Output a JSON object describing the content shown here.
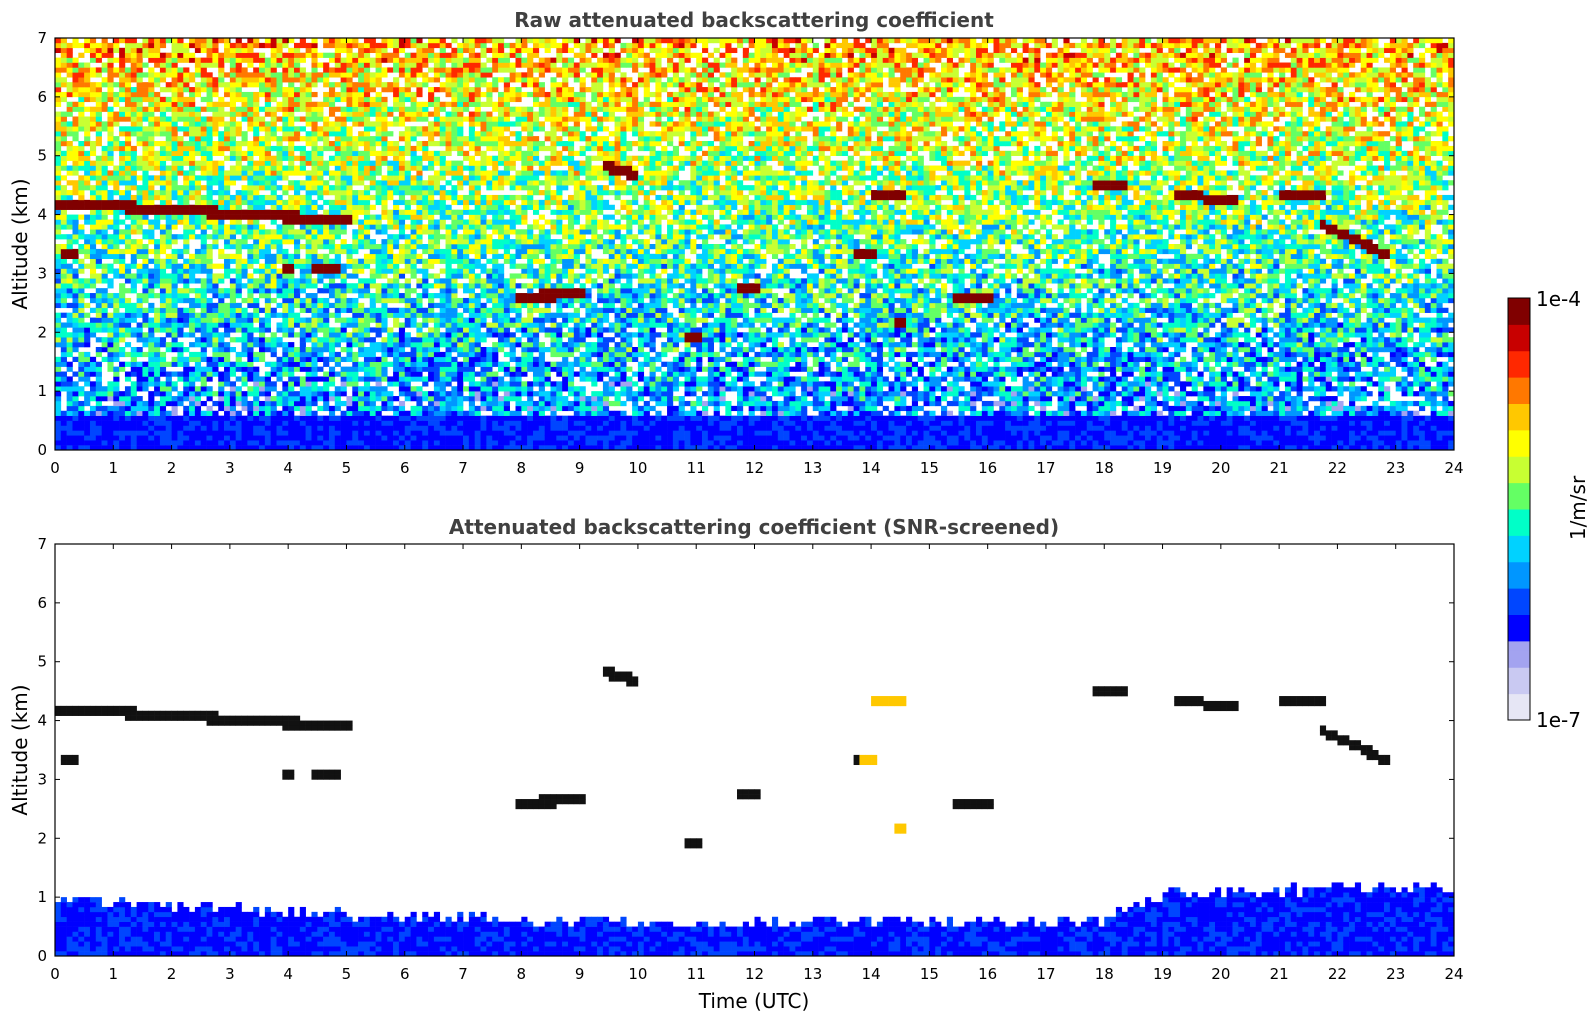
{
  "chart_data": [
    {
      "type": "heatmap",
      "title": "Raw attenuated backscattering coefficient",
      "xlabel": "",
      "ylabel": "Altitude (km)",
      "xlim": [
        0,
        24
      ],
      "ylim": [
        0,
        7
      ],
      "xticks": [
        "0",
        "1",
        "2",
        "3",
        "4",
        "5",
        "6",
        "7",
        "8",
        "9",
        "10",
        "11",
        "12",
        "13",
        "14",
        "15",
        "16",
        "17",
        "18",
        "19",
        "20",
        "21",
        "22",
        "23",
        "24"
      ],
      "yticks": [
        "0",
        "1",
        "2",
        "3",
        "4",
        "5",
        "6",
        "7"
      ],
      "features": {
        "boundary_layer_top_km": 0.6,
        "cloud_layers": [
          {
            "t_start": 0.1,
            "t_end": 5.0,
            "alt_start": 4.2,
            "alt_end": 3.9
          },
          {
            "t_start": 0.2,
            "t_end": 0.3,
            "alt_start": 3.35,
            "alt_end": 3.35
          },
          {
            "t_start": 4.0,
            "t_end": 4.1,
            "alt_start": 3.1,
            "alt_end": 3.1
          },
          {
            "t_start": 4.5,
            "t_end": 4.8,
            "alt_start": 3.1,
            "alt_end": 3.1
          },
          {
            "t_start": 7.9,
            "t_end": 9.0,
            "alt_start": 2.6,
            "alt_end": 2.65
          },
          {
            "t_start": 9.5,
            "t_end": 9.9,
            "alt_start": 4.8,
            "alt_end": 4.7
          },
          {
            "t_start": 10.9,
            "t_end": 11.0,
            "alt_start": 1.9,
            "alt_end": 1.9
          },
          {
            "t_start": 11.8,
            "t_end": 12.0,
            "alt_start": 2.75,
            "alt_end": 2.75
          },
          {
            "t_start": 13.8,
            "t_end": 14.0,
            "alt_start": 3.3,
            "alt_end": 3.3
          },
          {
            "t_start": 14.1,
            "t_end": 14.6,
            "alt_start": 4.3,
            "alt_end": 4.3
          },
          {
            "t_start": 14.5,
            "t_end": 14.6,
            "alt_start": 2.2,
            "alt_end": 2.2
          },
          {
            "t_start": 15.5,
            "t_end": 16.0,
            "alt_start": 2.6,
            "alt_end": 2.6
          },
          {
            "t_start": 17.9,
            "t_end": 18.3,
            "alt_start": 4.5,
            "alt_end": 4.5
          },
          {
            "t_start": 19.3,
            "t_end": 19.6,
            "alt_start": 4.35,
            "alt_end": 4.35
          },
          {
            "t_start": 19.8,
            "t_end": 20.2,
            "alt_start": 4.25,
            "alt_end": 4.25
          },
          {
            "t_start": 21.1,
            "t_end": 21.7,
            "alt_start": 4.3,
            "alt_end": 4.3
          },
          {
            "t_start": 21.8,
            "t_end": 22.9,
            "alt_start": 3.8,
            "alt_end": 3.3
          }
        ]
      }
    },
    {
      "type": "heatmap",
      "title": "Attenuated backscattering coefficient (SNR-screened)",
      "xlabel": "Time (UTC)",
      "ylabel": "Altitude (km)",
      "xlim": [
        0,
        24
      ],
      "ylim": [
        0,
        7
      ],
      "xticks": [
        "0",
        "1",
        "2",
        "3",
        "4",
        "5",
        "6",
        "7",
        "8",
        "9",
        "10",
        "11",
        "12",
        "13",
        "14",
        "15",
        "16",
        "17",
        "18",
        "19",
        "20",
        "21",
        "22",
        "23",
        "24"
      ],
      "yticks": [
        "0",
        "1",
        "2",
        "3",
        "4",
        "5",
        "6",
        "7"
      ],
      "features": {
        "boundary_layer_top_km": [
          [
            0,
            0.95
          ],
          [
            5,
            0.7
          ],
          [
            11,
            0.55
          ],
          [
            18,
            0.6
          ],
          [
            19,
            1.05
          ],
          [
            24,
            1.2
          ]
        ],
        "masked": "white"
      }
    }
  ],
  "colorbar": {
    "label": "1/m/sr",
    "max_label": "1e-4",
    "min_label": "1e-7",
    "scale": "log",
    "range": [
      1e-07,
      0.0001
    ],
    "colors": [
      "#e6e6f5",
      "#c9c9f2",
      "#a3a3f0",
      "#0000ff",
      "#0046ff",
      "#0096ff",
      "#00d2ff",
      "#00ffc8",
      "#64ff64",
      "#c8ff32",
      "#ffff00",
      "#ffc800",
      "#ff7800",
      "#ff2800",
      "#c80000",
      "#800000"
    ]
  }
}
